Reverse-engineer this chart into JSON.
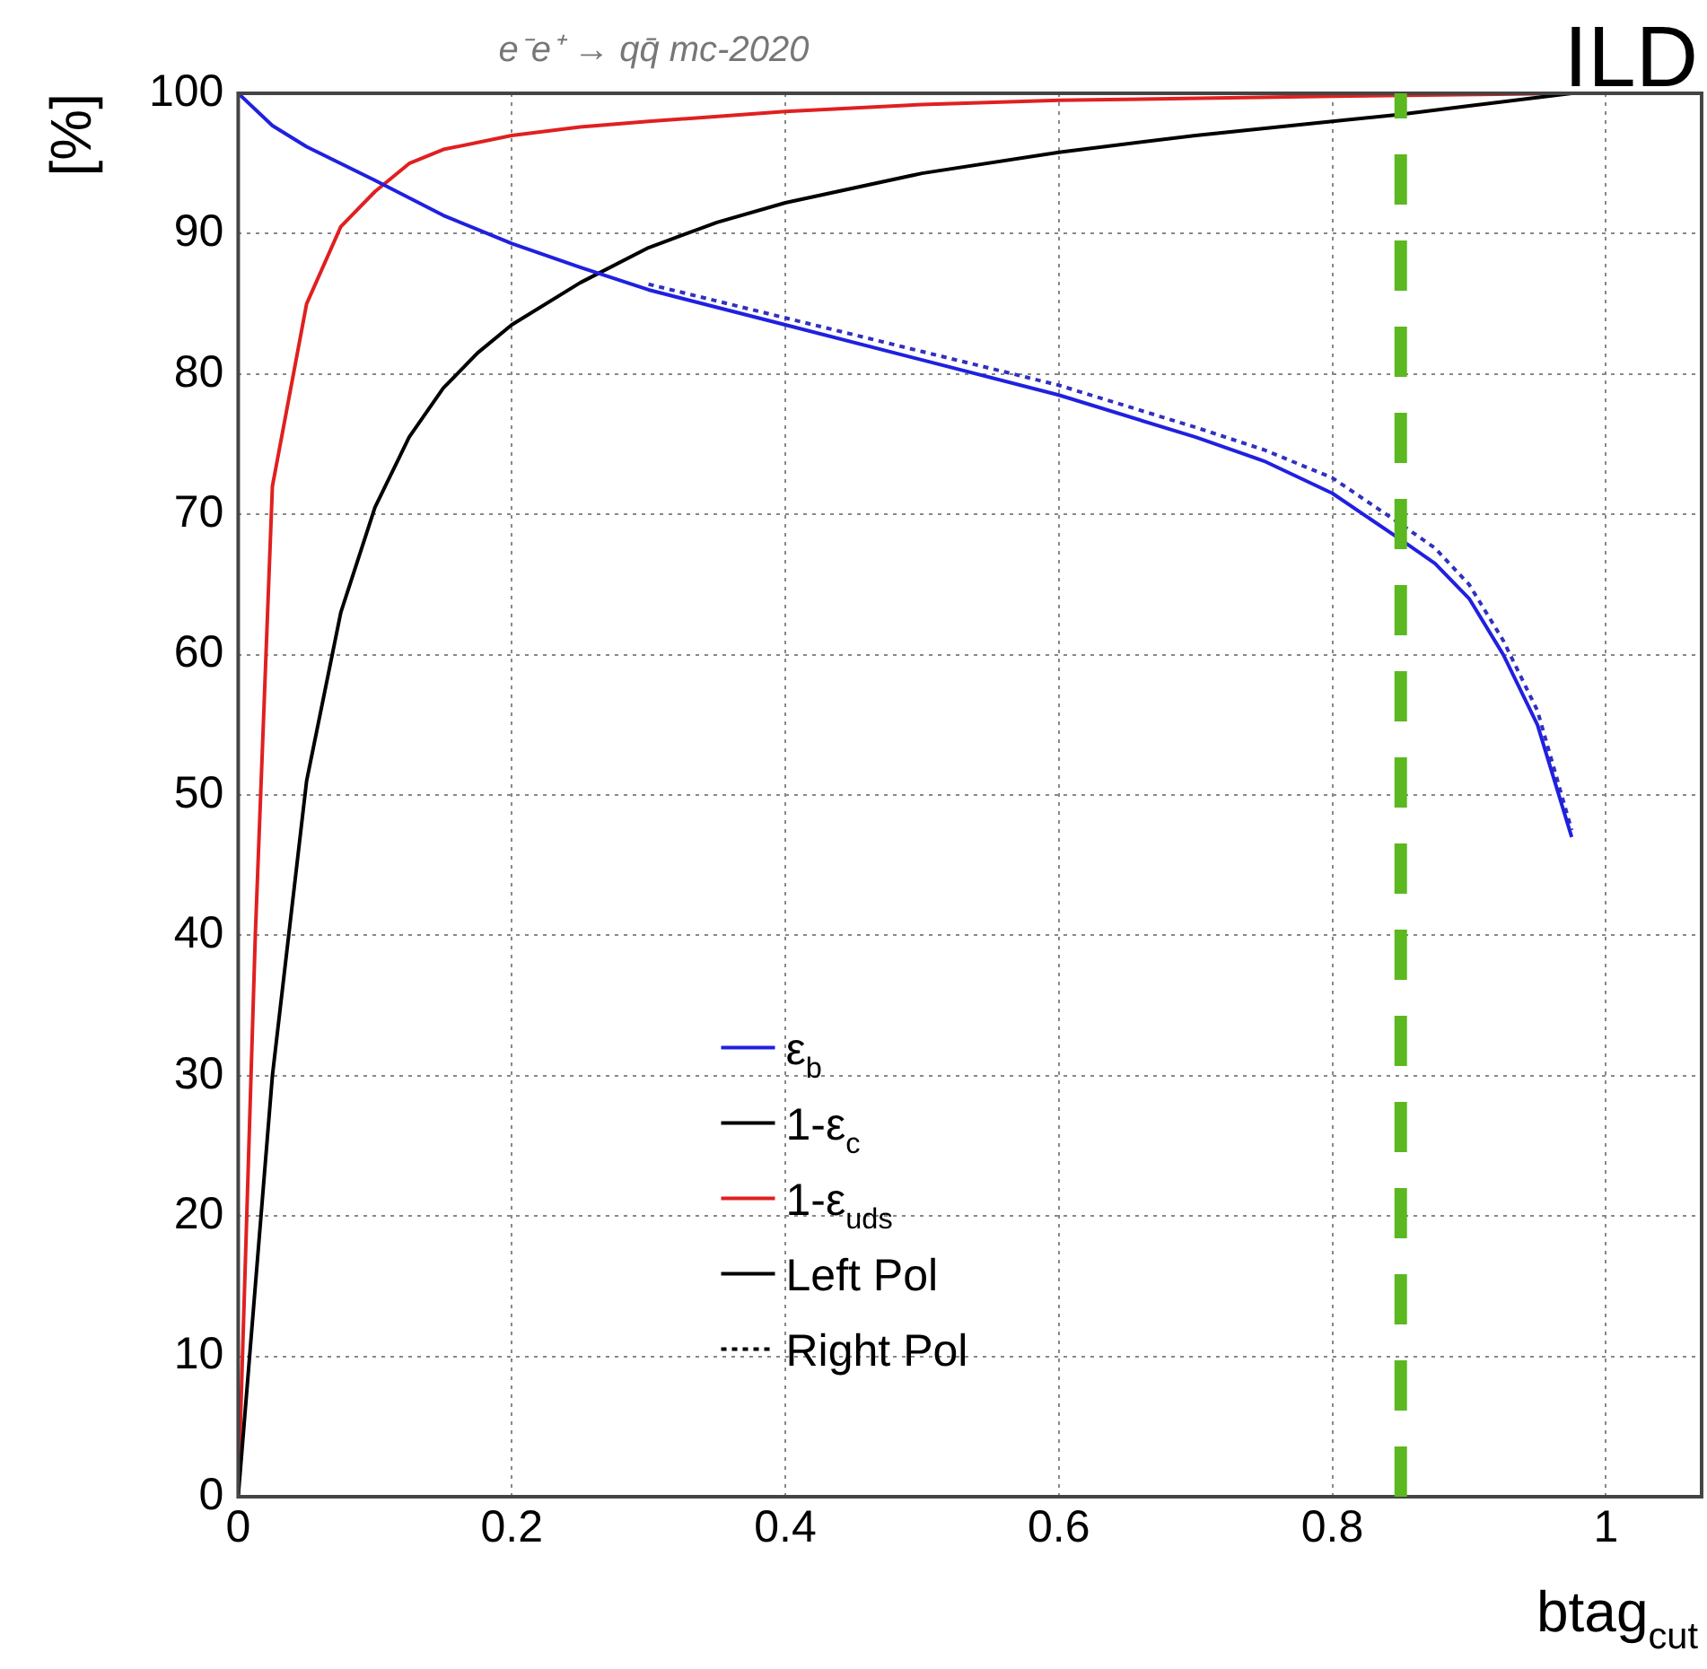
{
  "chart_data": {
    "type": "line",
    "title": "e⁻e⁺ → qq̄ mc-2020",
    "xlabel": "btag$_{cut}$",
    "ylabel": "[%]",
    "annotations": [
      "ILD"
    ],
    "xlim": [
      0,
      1.07
    ],
    "xticks": [
      0,
      0.2,
      0.4,
      0.6,
      0.8,
      1
    ],
    "ylim": [
      0,
      100
    ],
    "yticks": [
      0,
      10,
      20,
      30,
      40,
      50,
      60,
      70,
      80,
      90,
      100
    ],
    "grid": true,
    "legend": "bottom",
    "marker": "none",
    "ref_lines": [
      {
        "axis": "x",
        "value": 0.85,
        "color": "#5cb821",
        "line_style": "dashed"
      }
    ],
    "series": [
      {
        "name": "ε$_{b}$",
        "color": "#2020e0",
        "line_style": "solid",
        "x": [
          0,
          0.025,
          0.05,
          0.075,
          0.1,
          0.15,
          0.2,
          0.25,
          0.3,
          0.4,
          0.5,
          0.6,
          0.7,
          0.75,
          0.8,
          0.85,
          0.875,
          0.9,
          0.925,
          0.95,
          0.975
        ],
        "values": [
          100,
          97.7,
          96.2,
          95,
          93.8,
          91.3,
          89.3,
          87.6,
          86,
          83.5,
          81,
          78.5,
          75.5,
          73.8,
          71.5,
          68.2,
          66.5,
          64,
          60,
          55,
          47
        ]
      },
      {
        "color": "#3030c0",
        "line_style": "dotted",
        "x": [
          0.3,
          0.4,
          0.5,
          0.6,
          0.7,
          0.75,
          0.8,
          0.85,
          0.875,
          0.9,
          0.925,
          0.95,
          0.975
        ],
        "values": [
          86.4,
          84,
          81.6,
          79.2,
          76.2,
          74.6,
          72.6,
          69.3,
          67.6,
          65,
          61,
          56,
          47.5
        ]
      },
      {
        "name": "1-ε$_{c}$",
        "color": "#000000",
        "line_style": "solid",
        "x": [
          0,
          0.025,
          0.05,
          0.075,
          0.1,
          0.125,
          0.15,
          0.175,
          0.2,
          0.25,
          0.3,
          0.35,
          0.4,
          0.5,
          0.6,
          0.7,
          0.8,
          0.85,
          0.9,
          0.975
        ],
        "values": [
          0,
          30,
          51,
          63,
          70.5,
          75.5,
          79,
          81.5,
          83.5,
          86.5,
          89,
          90.8,
          92.2,
          94.3,
          95.8,
          97,
          98,
          98.5,
          99.1,
          100
        ]
      },
      {
        "name": "1-ε$_{uds}$",
        "color": "#e02020",
        "line_style": "solid",
        "x": [
          0,
          0.0125,
          0.025,
          0.05,
          0.075,
          0.1,
          0.125,
          0.15,
          0.2,
          0.25,
          0.3,
          0.4,
          0.5,
          0.6,
          0.8,
          0.975
        ],
        "values": [
          0,
          40,
          72,
          85,
          90.5,
          93,
          95,
          96,
          97,
          97.6,
          98,
          98.7,
          99.2,
          99.5,
          99.8,
          100
        ]
      },
      {
        "name": "Left Pol",
        "color": "#000000",
        "line_style": "solid"
      },
      {
        "name": "Right Pol",
        "color": "#000000",
        "line_style": "dotted"
      }
    ]
  }
}
